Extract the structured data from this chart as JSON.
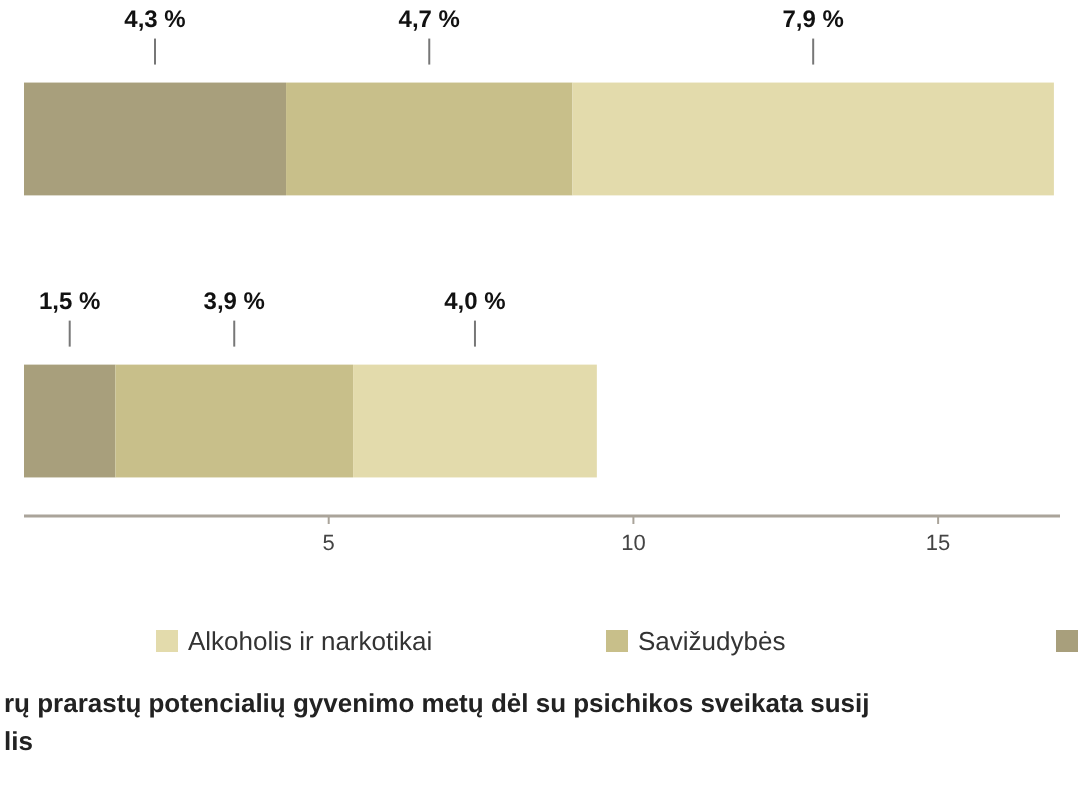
{
  "chart_data": {
    "type": "bar",
    "orientation": "horizontal",
    "stacked": true,
    "title": "rų prarastų potencialių gyvenimo metų dėl su psichikos sveikata susij\nlis",
    "categories": [
      null,
      null
    ],
    "series": [
      {
        "color": "#a89f7c",
        "values": [
          4.3,
          1.5
        ],
        "value_labels": [
          "4,3 %",
          "1,5 %"
        ]
      },
      {
        "name": "Savižudybės",
        "color": "#c8bf8a",
        "values": [
          4.7,
          3.9
        ],
        "value_labels": [
          "4,7 %",
          "3,9 %"
        ]
      },
      {
        "name": "Alkoholis ir narkotikai",
        "color": "#e3dbac",
        "values": [
          7.9,
          4.0
        ],
        "value_labels": [
          "7,9 %",
          "4,0 %"
        ]
      }
    ],
    "xlim": [
      0,
      17
    ],
    "xticks": [
      5,
      10,
      15
    ],
    "legend": "bottom"
  }
}
